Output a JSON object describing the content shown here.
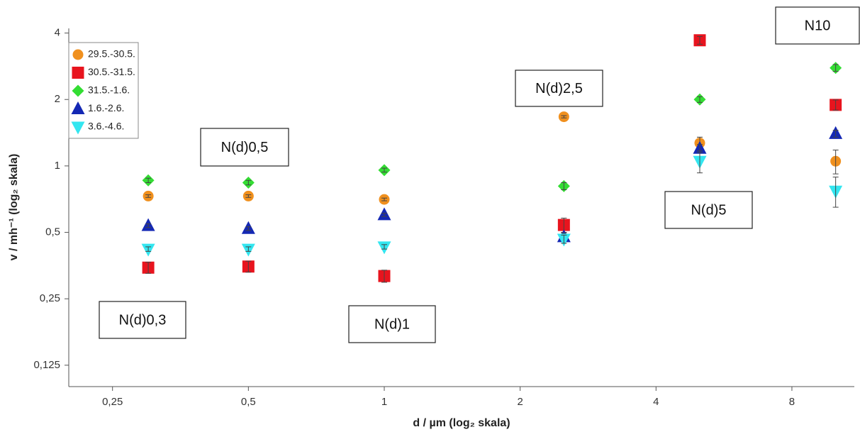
{
  "chart_data": {
    "type": "scatter",
    "x_label": "d / µm (log₂ skala)",
    "y_label": "v / mh⁻¹ (log₂ skala)",
    "x_scale": "log2",
    "y_scale": "log2",
    "xlim": [
      0.2,
      11
    ],
    "ylim": [
      0.1,
      4.2
    ],
    "xticks": [
      {
        "value": 0.25,
        "label": "0,25"
      },
      {
        "value": 0.5,
        "label": "0,5"
      },
      1,
      2,
      4,
      8
    ],
    "yticks": [
      {
        "value": 0.125,
        "label": "0,125"
      },
      {
        "value": 0.25,
        "label": "0,25"
      },
      {
        "value": 0.5,
        "label": "0,5"
      },
      1,
      2,
      4
    ],
    "legend": "top-left",
    "x": [
      0.3,
      0.5,
      1,
      2.5,
      5,
      10
    ],
    "annotations": [
      "N(d)0,3",
      "N(d)0,5",
      "N(d)1",
      "N(d)2,5",
      "N(d)5",
      "N10"
    ],
    "series": [
      {
        "name": "29.5.-30.5.",
        "color": "#f0901e",
        "marker": "circle",
        "values": [
          0.73,
          0.73,
          0.705,
          1.67,
          1.27,
          1.05
        ],
        "errors": [
          0.01,
          0.01,
          0.01,
          0.02,
          0.08,
          0.13
        ]
      },
      {
        "name": "30.5.-31.5.",
        "color": "#e8141e",
        "marker": "square",
        "values": [
          0.346,
          0.35,
          0.317,
          0.54,
          3.71,
          1.89
        ],
        "errors": [
          0.02,
          0.02,
          0.02,
          0.04,
          0.15,
          0.1
        ]
      },
      {
        "name": "31.5.-1.6.",
        "color": "#33dd33",
        "marker": "diamond",
        "values": [
          0.86,
          0.84,
          0.957,
          0.81,
          2,
          2.78
        ],
        "errors": [
          0.02,
          0.02,
          0.02,
          0.03,
          0.06,
          0.1
        ]
      },
      {
        "name": "1.6.-2.6.",
        "color": "#1428b4",
        "marker": "triangle-up",
        "values": [
          0.536,
          0.52,
          0.6,
          0.477,
          1.2,
          1.4
        ],
        "errors": [
          0.01,
          0.01,
          0.01,
          0.02,
          0.05,
          0.05
        ]
      },
      {
        "name": "3.6.-4.6.",
        "color": "#33e6f0",
        "marker": "triangle-down",
        "values": [
          0.42,
          0.42,
          0.43,
          0.466,
          1.05,
          0.77
        ],
        "errors": [
          0.01,
          0.01,
          0.01,
          0.02,
          0.12,
          0.12
        ]
      }
    ]
  }
}
